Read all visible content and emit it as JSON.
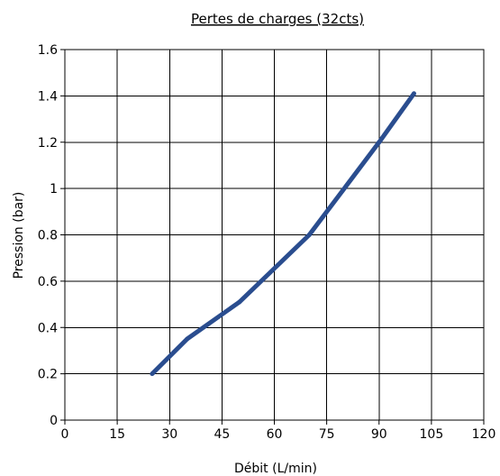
{
  "chart_data": {
    "type": "line",
    "title": "Pertes de charges (32cts)",
    "xlabel": "Débit (L/min)",
    "ylabel": "Pression (bar)",
    "xlim": [
      0,
      120
    ],
    "ylim": [
      0,
      1.6
    ],
    "xticks": [
      "0",
      "15",
      "30",
      "45",
      "60",
      "75",
      "90",
      "105",
      "120"
    ],
    "yticks": [
      "0",
      "0.2",
      "0.4",
      "0.6",
      "0.8",
      "1",
      "1.2",
      "1.4",
      "1.6"
    ],
    "grid": true,
    "series": [
      {
        "color": "#2a4d8f",
        "x": [
          25,
          35,
          50,
          70,
          90,
          100
        ],
        "y": [
          0.2,
          0.35,
          0.51,
          0.8,
          1.2,
          1.41
        ]
      }
    ]
  }
}
